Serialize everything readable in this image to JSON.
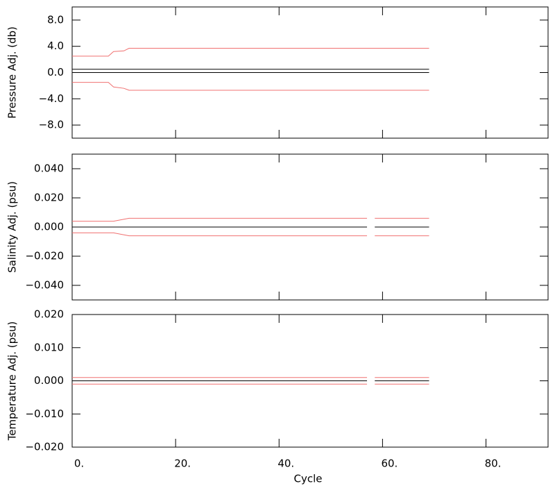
{
  "chart_data": [
    {
      "type": "line",
      "ylabel": "Pressure Adj. (db)",
      "ylim": [
        -10,
        10
      ],
      "yticks": [
        {
          "value": 8,
          "label": "8.0"
        },
        {
          "value": 4,
          "label": "4.0"
        },
        {
          "value": 0,
          "label": "0.0"
        },
        {
          "value": -4,
          "label": "−4.0"
        },
        {
          "value": -8,
          "label": "−8.0"
        }
      ],
      "x": [
        0,
        7,
        8,
        10,
        11,
        69
      ],
      "series": [
        {
          "color": "#f07070",
          "values": [
            2.5,
            2.5,
            3.2,
            3.3,
            3.7,
            3.7
          ]
        },
        {
          "color": "#000000",
          "values": [
            0.5,
            0.5,
            0.5,
            0.5,
            0.5,
            0.5
          ]
        },
        {
          "color": "#000000",
          "values": [
            0,
            0,
            0,
            0,
            0,
            0
          ]
        },
        {
          "color": "#f07070",
          "values": [
            -1.5,
            -1.5,
            -2.2,
            -2.4,
            -2.7,
            -2.7
          ]
        }
      ]
    },
    {
      "type": "line",
      "ylabel": "Salinity Adj. (psu)",
      "ylim": [
        -0.05,
        0.05
      ],
      "yticks": [
        {
          "value": 0.04,
          "label": "0.040"
        },
        {
          "value": 0.02,
          "label": "0.020"
        },
        {
          "value": 0,
          "label": "0.000"
        },
        {
          "value": -0.02,
          "label": "−0.020"
        },
        {
          "value": -0.04,
          "label": "−0.040"
        }
      ],
      "x": [
        0,
        8,
        11,
        57,
        57.5,
        58.5,
        69
      ],
      "series": [
        {
          "color": "#f07070",
          "values": [
            0.004,
            0.004,
            0.006,
            0.006,
            null,
            0.006,
            0.006
          ]
        },
        {
          "color": "#000000",
          "values": [
            0,
            0,
            0,
            0,
            null,
            0,
            0
          ]
        },
        {
          "color": "#f07070",
          "values": [
            -0.004,
            -0.004,
            -0.006,
            -0.006,
            null,
            -0.006,
            -0.006
          ]
        }
      ]
    },
    {
      "type": "line",
      "ylabel": "Temperature Adj. (psu)",
      "xlabel": "Cycle",
      "ylim": [
        -0.02,
        0.02
      ],
      "yticks": [
        {
          "value": 0.02,
          "label": "0.020"
        },
        {
          "value": 0.01,
          "label": "0.010"
        },
        {
          "value": 0,
          "label": "0.000"
        },
        {
          "value": -0.01,
          "label": "−0.010"
        },
        {
          "value": -0.02,
          "label": "−0.020"
        }
      ],
      "xlim": [
        0,
        92
      ],
      "xticks": [
        {
          "value": 0,
          "label": "0."
        },
        {
          "value": 20,
          "label": "20."
        },
        {
          "value": 40,
          "label": "40."
        },
        {
          "value": 60,
          "label": "60."
        },
        {
          "value": 80,
          "label": "80."
        }
      ],
      "x": [
        0,
        8,
        11,
        57,
        57.5,
        58.5,
        69
      ],
      "series": [
        {
          "color": "#f07070",
          "values": [
            0.001,
            0.001,
            0.001,
            0.001,
            null,
            0.001,
            0.001
          ]
        },
        {
          "color": "#000000",
          "values": [
            0,
            0,
            0,
            0,
            null,
            0,
            0
          ]
        },
        {
          "color": "#f07070",
          "values": [
            -0.001,
            -0.001,
            -0.001,
            -0.001,
            null,
            -0.001,
            -0.001
          ]
        }
      ]
    }
  ]
}
